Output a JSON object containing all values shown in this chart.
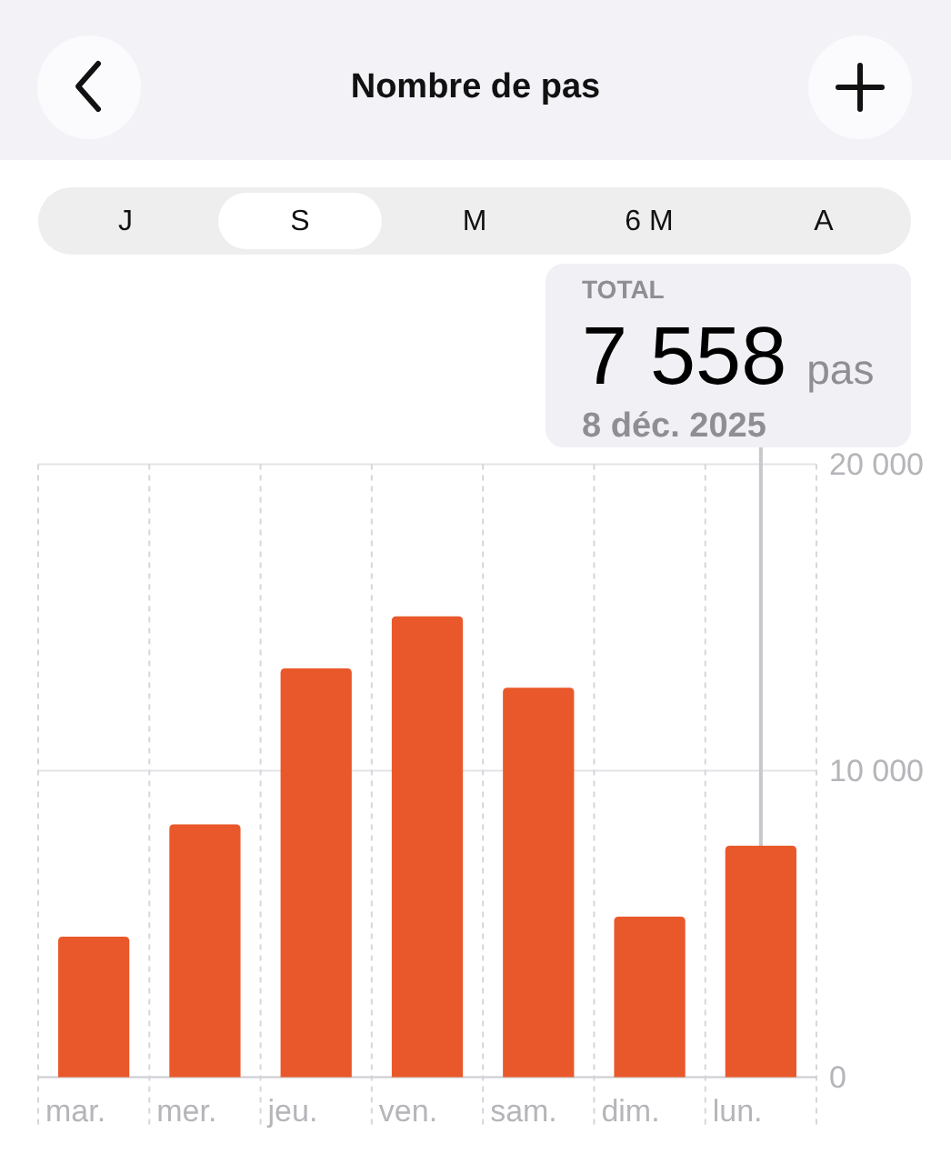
{
  "chart_data": {
    "type": "bar",
    "title": "Nombre de pas",
    "categories": [
      "mar.",
      "mer.",
      "jeu.",
      "ven.",
      "sam.",
      "dim.",
      "lun."
    ],
    "values": [
      4590,
      8250,
      13340,
      15040,
      12710,
      5240,
      7558
    ],
    "color": "#e9582b",
    "ylim": [
      0,
      20000
    ],
    "yticks": [
      0,
      {
        "value": 10000,
        "label": "10 000"
      },
      {
        "value": 20000,
        "label": "20 000"
      }
    ],
    "grid": true,
    "annotations": [
      "J",
      "S",
      "M",
      "6 M",
      "A",
      "TOTAL",
      "7 558",
      "pas",
      "8 déc. 2025"
    ]
  }
}
